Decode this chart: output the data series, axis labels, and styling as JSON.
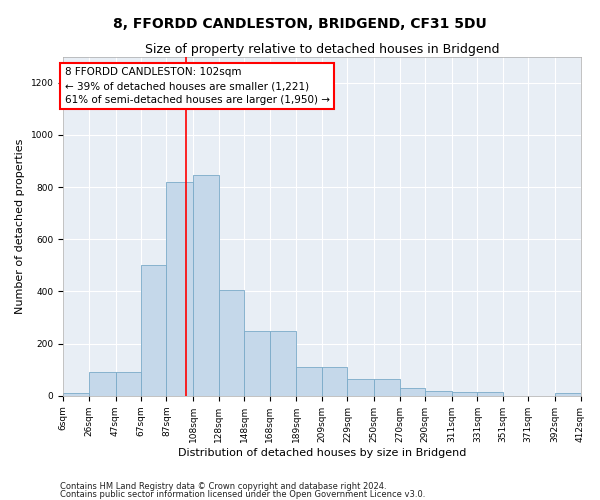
{
  "title": "8, FFORDD CANDLESTON, BRIDGEND, CF31 5DU",
  "subtitle": "Size of property relative to detached houses in Bridgend",
  "xlabel": "Distribution of detached houses by size in Bridgend",
  "ylabel": "Number of detached properties",
  "footnote1": "Contains HM Land Registry data © Crown copyright and database right 2024.",
  "footnote2": "Contains public sector information licensed under the Open Government Licence v3.0.",
  "annotation_line1": "8 FFORDD CANDLESTON: 102sqm",
  "annotation_line2": "← 39% of detached houses are smaller (1,221)",
  "annotation_line3": "61% of semi-detached houses are larger (1,950) →",
  "bar_color": "#c5d8ea",
  "bar_edge_color": "#7aaac8",
  "property_line_color": "red",
  "property_sqm": 102,
  "bin_edges": [
    6,
    26,
    47,
    67,
    87,
    108,
    128,
    148,
    168,
    189,
    209,
    229,
    250,
    270,
    290,
    311,
    331,
    351,
    371,
    392,
    412
  ],
  "bar_heights": [
    10,
    90,
    90,
    500,
    820,
    845,
    405,
    250,
    250,
    110,
    110,
    65,
    65,
    30,
    20,
    15,
    15,
    0,
    0,
    10,
    0
  ],
  "ylim": [
    0,
    1300
  ],
  "yticks": [
    0,
    200,
    400,
    600,
    800,
    1000,
    1200
  ],
  "plot_bgcolor": "#e8eef5",
  "title_fontsize": 10,
  "subtitle_fontsize": 9,
  "axis_label_fontsize": 8,
  "tick_fontsize": 6.5,
  "footnote_fontsize": 6,
  "annotation_fontsize": 7.5
}
